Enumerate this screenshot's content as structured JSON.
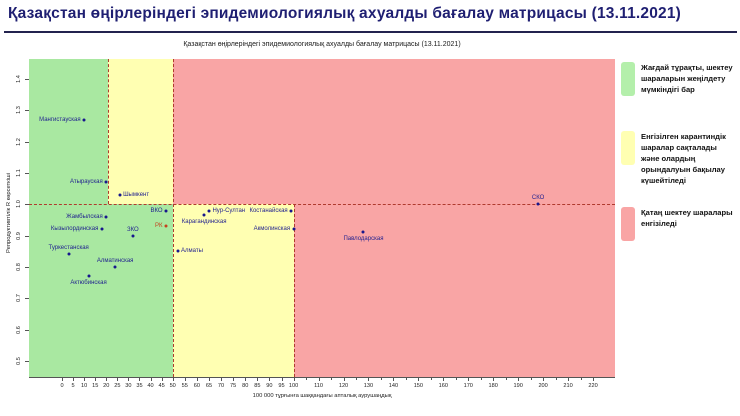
{
  "header": {
    "title": "Қазақстан өңірлеріндегі эпидемиологиялық ахуалды бағалау матрицасы  (13.11.2021)"
  },
  "colors": {
    "title": "#1f1f72",
    "title_rule": "#23234f",
    "zone_green": "#a9e8a1",
    "zone_yellow": "#ffffb2",
    "zone_red": "#f9a5a5",
    "legend_green": "#b4efab",
    "boundary_dash": "#b03a2e",
    "point": "#17178c",
    "point_label": "#1f1f8f",
    "rk": "#c4431f"
  },
  "chart_data": {
    "type": "scatter",
    "title": "Қазақстан өңірлеріндегі эпидемиологиялық ахуалды бағалау матрицасы (13.11.2021)",
    "xlabel": "100 000 тұрғынға шаққандағы апталық аурушаңдық",
    "ylabel": "Репродуктивтілік R көрсеткіші",
    "xlim": [
      0,
      225
    ],
    "ylim": [
      0.45,
      1.45
    ],
    "grid": false,
    "legend_position": "right",
    "x_ticks_labeled": [
      0,
      5,
      10,
      15,
      20,
      25,
      30,
      35,
      40,
      45,
      50,
      55,
      60,
      65,
      70,
      75,
      80,
      85,
      90,
      95,
      100,
      110,
      120,
      130,
      140,
      150,
      160,
      170,
      180,
      190,
      200,
      210,
      220
    ],
    "x_ticks_minor": [
      105,
      115,
      125,
      135,
      145,
      155,
      165,
      175,
      185,
      195,
      205,
      215
    ],
    "y_ticks": [
      0.5,
      0.6,
      0.7,
      0.8,
      0.9,
      1.0,
      1.1,
      1.2,
      1.3,
      1.4
    ],
    "r_threshold": 1.0,
    "zones": {
      "above_R1_boundaries_x": [
        21,
        50
      ],
      "below_R1_boundaries_x": [
        50,
        100
      ],
      "order": [
        "green",
        "yellow",
        "red"
      ]
    },
    "points": [
      {
        "name": "Мангистауская",
        "x": 10,
        "y": 1.27,
        "label": "left"
      },
      {
        "name": "Атырауская",
        "x": 20,
        "y": 1.07,
        "label": "left"
      },
      {
        "name": "Шымкент",
        "x": 26,
        "y": 1.03,
        "label": "right"
      },
      {
        "name": "ВКО",
        "x": 47,
        "y": 0.98,
        "label": "left"
      },
      {
        "name": "РК",
        "x": 47,
        "y": 0.93,
        "label": "left",
        "highlight": true
      },
      {
        "name": "Жамбылская",
        "x": 20,
        "y": 0.96,
        "label": "left"
      },
      {
        "name": "Кызылординская",
        "x": 18,
        "y": 0.92,
        "label": "left"
      },
      {
        "name": "ЗКО",
        "x": 32,
        "y": 0.9,
        "label": "above"
      },
      {
        "name": "Туркестанская",
        "x": 3,
        "y": 0.84,
        "label": "above"
      },
      {
        "name": "Алматинская",
        "x": 24,
        "y": 0.8,
        "label": "above"
      },
      {
        "name": "Актюбинская",
        "x": 12,
        "y": 0.77,
        "label": "below"
      },
      {
        "name": "Алматы",
        "x": 52,
        "y": 0.85,
        "label": "right"
      },
      {
        "name": "Нур-Султан",
        "x": 65,
        "y": 0.98,
        "label": "right"
      },
      {
        "name": "Карагандинская",
        "x": 63,
        "y": 0.965,
        "label": "below"
      },
      {
        "name": "Костанайская",
        "x": 99,
        "y": 0.98,
        "label": "left"
      },
      {
        "name": "Акмолинская",
        "x": 100,
        "y": 0.92,
        "label": "left"
      },
      {
        "name": "Павлодарская",
        "x": 128,
        "y": 0.91,
        "label": "below"
      },
      {
        "name": "СКО",
        "x": 198,
        "y": 1.0,
        "label": "above"
      }
    ]
  },
  "legend": {
    "items": [
      {
        "zone": "green",
        "label": "Жағдай тұрақты, шектеу шараларын жеңілдету мүмкіндігі бар"
      },
      {
        "zone": "yellow",
        "label": "Енгізілген карантиндік шаралар сақталады және олардың орындалуын бақылау күшейтіледі"
      },
      {
        "zone": "red",
        "label": "Қатаң шектеу шаралары енгізіледі"
      }
    ]
  }
}
